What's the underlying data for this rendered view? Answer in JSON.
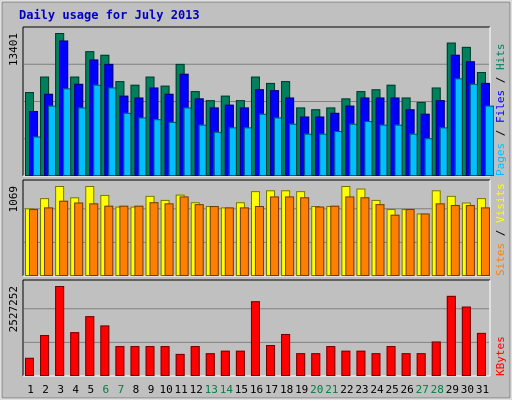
{
  "chart_data": {
    "type": "bar",
    "title": "Daily usage for July 2013",
    "categories": [
      "1",
      "2",
      "3",
      "4",
      "5",
      "6",
      "7",
      "8",
      "9",
      "10",
      "11",
      "12",
      "13",
      "14",
      "15",
      "16",
      "17",
      "18",
      "19",
      "20",
      "21",
      "22",
      "23",
      "24",
      "25",
      "26",
      "27",
      "28",
      "29",
      "30",
      "31"
    ],
    "weekend_days": [
      "6",
      "7",
      "13",
      "14",
      "20",
      "21",
      "27",
      "28"
    ],
    "panels": [
      {
        "name": "hits-files-pages",
        "ymax_label": "13401",
        "ylim": [
          0,
          13401
        ],
        "ylabel_parts": [
          "Pages",
          "Files",
          "Hits"
        ],
        "series": [
          {
            "name": "Hits",
            "color": "#00805c",
            "values": [
              7868,
              9318,
              13401,
              9318,
              11698,
              11357,
              8891,
              8551,
              9318,
              8466,
              10504,
              7954,
              7106,
              7530,
              7106,
              9318,
              8721,
              8891,
              6426,
              6254,
              6426,
              7274,
              7954,
              8126,
              8551,
              7359,
              6936,
              8296,
              12506,
              12100,
              9744
            ]
          },
          {
            "name": "Files",
            "color": "#0000ff",
            "values": [
              6085,
              7700,
              12700,
              8635,
              10923,
              10504,
              7527,
              7359,
              8296,
              7700,
              9576,
              7274,
              6426,
              6680,
              6426,
              8127,
              8041,
              7359,
              5577,
              5577,
              5917,
              6596,
              7359,
              7359,
              7359,
              6250,
              5830,
              7106,
              11357,
              10750,
              8721
            ]
          },
          {
            "name": "Pages",
            "color": "#00c0ff",
            "values": [
              3706,
              6595,
              8211,
              6425,
              8551,
              8296,
              5915,
              5489,
              5320,
              5068,
              6425,
              4811,
              4137,
              4557,
              4557,
              5831,
              5489,
              4895,
              3960,
              3960,
              4216,
              4895,
              5151,
              4811,
              4811,
              3960,
              3539,
              4557,
              9148,
              8635,
              6595
            ]
          }
        ]
      },
      {
        "name": "visits-sites",
        "ymax_label": "1069",
        "ylim": [
          0,
          1069
        ],
        "ylabel_parts": [
          "Sites",
          "Visits"
        ],
        "series": [
          {
            "name": "Visits",
            "color": "#ffff00",
            "values": [
              804,
              925,
              1069,
              935,
              1069,
              963,
              825,
              825,
              952,
              904,
              967,
              876,
              831,
              815,
              876,
              1008,
              1018,
              1018,
              1008,
              831,
              831,
              1069,
              1039,
              904,
              795,
              795,
              743,
              1018,
              952,
              873,
              925
            ]
          },
          {
            "name": "Sites",
            "color": "#ff8000",
            "values": [
              795,
              815,
              894,
              873,
              863,
              835,
              835,
              835,
              876,
              863,
              945,
              853,
              831,
              815,
              815,
              831,
              945,
              945,
              935,
              825,
              835,
              945,
              935,
              853,
              728,
              795,
              743,
              863,
              843,
              843,
              815
            ]
          }
        ]
      },
      {
        "name": "kbytes",
        "ymax_label": "2527252",
        "ylim": [
          0,
          2527252
        ],
        "ylabel_parts": [
          "KBytes"
        ],
        "series": [
          {
            "name": "KBytes",
            "color": "#ff0000",
            "values": [
              510000,
              1150000,
              2527252,
              1230000,
              1680000,
              1420000,
              840000,
              840000,
              840000,
              840000,
              620000,
              840000,
              640000,
              710000,
              710000,
              2100000,
              870000,
              1180000,
              640000,
              640000,
              840000,
              710000,
              710000,
              640000,
              840000,
              640000,
              640000,
              970000,
              2250000,
              1950000,
              1210000
            ]
          }
        ]
      }
    ],
    "colors": {
      "background": "#c0c0c0",
      "frame": "#ffffff",
      "plot_bg": "#c0c0c0",
      "title_color": "#0000c0",
      "gridline": "#808080",
      "weekend_label": "#008040",
      "weekday_label": "#000000"
    }
  }
}
